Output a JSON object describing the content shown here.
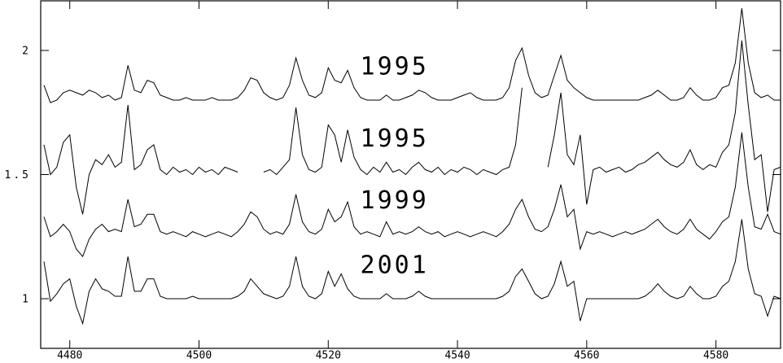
{
  "chart_data": {
    "type": "line",
    "x": [
      4476,
      4477,
      4478,
      4479,
      4480,
      4481,
      4482,
      4483,
      4484,
      4485,
      4486,
      4487,
      4488,
      4489,
      4490,
      4491,
      4492,
      4493,
      4494,
      4495,
      4496,
      4497,
      4498,
      4499,
      4500,
      4501,
      4502,
      4503,
      4504,
      4505,
      4506,
      4507,
      4508,
      4509,
      4510,
      4511,
      4512,
      4513,
      4514,
      4515,
      4516,
      4517,
      4518,
      4519,
      4520,
      4521,
      4522,
      4523,
      4524,
      4525,
      4526,
      4527,
      4528,
      4529,
      4530,
      4531,
      4532,
      4533,
      4534,
      4535,
      4536,
      4537,
      4538,
      4539,
      4540,
      4541,
      4542,
      4543,
      4544,
      4545,
      4546,
      4547,
      4548,
      4549,
      4550,
      4551,
      4552,
      4553,
      4554,
      4555,
      4556,
      4557,
      4558,
      4559,
      4560,
      4561,
      4562,
      4563,
      4564,
      4565,
      4566,
      4567,
      4568,
      4569,
      4570,
      4571,
      4572,
      4573,
      4574,
      4575,
      4576,
      4577,
      4578,
      4579,
      4580,
      4581,
      4582,
      4583,
      4584,
      4585,
      4586,
      4587,
      4588,
      4589,
      4590
    ],
    "series": [
      {
        "name": "1995",
        "color": "#000000",
        "values": [
          1.86,
          1.79,
          1.8,
          1.83,
          1.84,
          1.83,
          1.82,
          1.84,
          1.83,
          1.81,
          1.82,
          1.8,
          1.81,
          1.94,
          1.84,
          1.83,
          1.88,
          1.87,
          1.82,
          1.81,
          1.8,
          1.8,
          1.81,
          1.8,
          1.8,
          1.8,
          1.81,
          1.8,
          1.8,
          1.8,
          1.81,
          1.84,
          1.89,
          1.88,
          1.83,
          1.81,
          1.8,
          1.81,
          1.86,
          1.97,
          1.88,
          1.82,
          1.81,
          1.83,
          1.93,
          1.88,
          1.87,
          1.92,
          1.85,
          1.81,
          1.8,
          1.8,
          1.8,
          1.82,
          1.8,
          1.8,
          1.81,
          1.82,
          1.84,
          1.83,
          1.81,
          1.8,
          1.8,
          1.8,
          1.81,
          1.82,
          1.83,
          1.81,
          1.8,
          1.8,
          1.8,
          1.81,
          1.85,
          1.96,
          2.01,
          1.9,
          1.83,
          1.81,
          1.82,
          1.9,
          1.98,
          1.88,
          1.85,
          1.83,
          1.81,
          1.8,
          1.8,
          1.8,
          1.8,
          1.8,
          1.8,
          1.8,
          1.8,
          1.81,
          1.82,
          1.84,
          1.82,
          1.8,
          1.8,
          1.81,
          1.85,
          1.82,
          1.8,
          1.8,
          1.81,
          1.85,
          1.86,
          1.95,
          2.17,
          1.95,
          1.83,
          1.81,
          1.82,
          1.8,
          1.8
        ]
      },
      {
        "name": "1995",
        "color": "#000000",
        "values": [
          1.62,
          1.5,
          1.53,
          1.63,
          1.66,
          1.45,
          1.34,
          1.5,
          1.56,
          1.54,
          1.58,
          1.53,
          1.55,
          1.78,
          1.52,
          1.54,
          1.6,
          1.62,
          1.52,
          1.5,
          1.53,
          1.51,
          1.52,
          1.5,
          1.53,
          1.51,
          1.52,
          1.5,
          1.53,
          1.52,
          1.51,
          null,
          null,
          null,
          1.51,
          1.52,
          1.5,
          1.53,
          1.56,
          1.77,
          1.58,
          1.52,
          1.51,
          1.53,
          1.7,
          1.66,
          1.55,
          1.68,
          1.57,
          1.52,
          1.5,
          1.53,
          1.51,
          1.55,
          1.51,
          1.52,
          1.5,
          1.53,
          1.55,
          1.52,
          1.51,
          1.53,
          1.5,
          1.52,
          1.51,
          1.53,
          1.52,
          1.5,
          1.52,
          1.51,
          1.5,
          1.52,
          1.53,
          1.62,
          1.85,
          null,
          null,
          null,
          1.53,
          1.66,
          1.83,
          1.58,
          1.54,
          1.66,
          1.38,
          1.52,
          1.53,
          1.51,
          1.52,
          1.53,
          1.51,
          1.52,
          1.54,
          1.55,
          1.57,
          1.59,
          1.56,
          1.54,
          1.53,
          1.55,
          1.6,
          1.54,
          1.52,
          1.54,
          1.53,
          1.59,
          1.62,
          1.75,
          2.04,
          1.78,
          1.56,
          1.58,
          1.35,
          1.52,
          1.53
        ]
      },
      {
        "name": "1999",
        "color": "#000000",
        "values": [
          1.33,
          1.25,
          1.27,
          1.3,
          1.27,
          1.2,
          1.17,
          1.24,
          1.28,
          1.3,
          1.27,
          1.28,
          1.27,
          1.4,
          1.29,
          1.3,
          1.34,
          1.34,
          1.27,
          1.26,
          1.27,
          1.26,
          1.25,
          1.27,
          1.26,
          1.25,
          1.26,
          1.27,
          1.26,
          1.25,
          1.27,
          1.3,
          1.35,
          1.33,
          1.28,
          1.26,
          1.27,
          1.26,
          1.3,
          1.42,
          1.31,
          1.27,
          1.26,
          1.28,
          1.36,
          1.31,
          1.33,
          1.39,
          1.29,
          1.26,
          1.27,
          1.26,
          1.25,
          1.31,
          1.26,
          1.27,
          1.26,
          1.27,
          1.29,
          1.27,
          1.26,
          1.27,
          1.25,
          1.26,
          1.27,
          1.26,
          1.25,
          1.26,
          1.27,
          1.26,
          1.25,
          1.27,
          1.3,
          1.36,
          1.4,
          1.33,
          1.28,
          1.27,
          1.29,
          1.36,
          1.46,
          1.33,
          1.36,
          1.2,
          1.27,
          1.26,
          1.27,
          1.26,
          1.25,
          1.26,
          1.27,
          1.26,
          1.27,
          1.28,
          1.3,
          1.32,
          1.29,
          1.27,
          1.26,
          1.28,
          1.32,
          1.28,
          1.26,
          1.24,
          1.27,
          1.31,
          1.33,
          1.45,
          1.67,
          1.45,
          1.29,
          1.28,
          1.34,
          1.27,
          1.26
        ]
      },
      {
        "name": "2001",
        "color": "#000000",
        "values": [
          1.15,
          0.99,
          1.02,
          1.06,
          1.08,
          0.97,
          0.9,
          1.03,
          1.08,
          1.04,
          1.03,
          1.01,
          1.01,
          1.17,
          1.03,
          1.03,
          1.08,
          1.08,
          1.01,
          1.0,
          1.0,
          1.0,
          1.0,
          1.01,
          1.0,
          1.0,
          1.0,
          1.0,
          1.0,
          1.0,
          1.01,
          1.03,
          1.08,
          1.05,
          1.02,
          1.01,
          1.0,
          1.01,
          1.05,
          1.17,
          1.05,
          1.01,
          1.0,
          1.02,
          1.11,
          1.05,
          1.1,
          1.04,
          1.01,
          1.0,
          1.0,
          1.0,
          1.0,
          1.02,
          1.0,
          1.0,
          1.0,
          1.01,
          1.03,
          1.01,
          1.0,
          1.0,
          1.0,
          1.0,
          1.0,
          1.0,
          1.0,
          1.0,
          1.0,
          1.0,
          1.0,
          1.01,
          1.03,
          1.09,
          1.12,
          1.07,
          1.02,
          1.0,
          1.01,
          1.06,
          1.15,
          1.05,
          1.07,
          0.91,
          1.0,
          1.0,
          1.0,
          1.0,
          1.0,
          1.0,
          1.0,
          1.0,
          1.0,
          1.01,
          1.03,
          1.06,
          1.03,
          1.01,
          1.0,
          1.01,
          1.05,
          1.02,
          1.0,
          1.0,
          1.01,
          1.05,
          1.07,
          1.15,
          1.32,
          1.12,
          1.02,
          1.01,
          0.93,
          1.01,
          1.0
        ]
      }
    ],
    "xlim": [
      4475.5,
      4590
    ],
    "xticks": [
      4480,
      4500,
      4520,
      4540,
      4560,
      4580
    ],
    "ylim": [
      0.8,
      2.2
    ],
    "yticks": [
      1,
      1.5,
      2
    ]
  }
}
